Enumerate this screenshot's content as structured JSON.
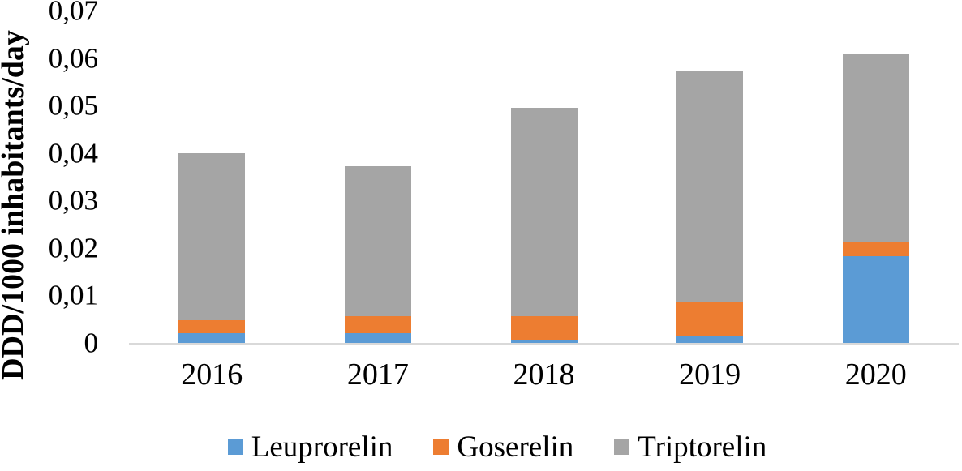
{
  "chart_data": {
    "type": "bar",
    "stacked": true,
    "title": "",
    "xlabel": "",
    "ylabel": "DDD/1000 inhabitants/day",
    "categories": [
      "2016",
      "2017",
      "2018",
      "2019",
      "2020"
    ],
    "series": [
      {
        "name": "Leuprorelin",
        "color": "#5B9BD5",
        "values": [
          0.002,
          0.002,
          0.0005,
          0.0015,
          0.0182
        ]
      },
      {
        "name": "Goserelin",
        "color": "#ED7D31",
        "values": [
          0.0027,
          0.0037,
          0.0051,
          0.007,
          0.0032
        ]
      },
      {
        "name": "Triptorelin",
        "color": "#A5A5A5",
        "values": [
          0.0353,
          0.0316,
          0.044,
          0.0487,
          0.0396
        ]
      }
    ],
    "stack_totals": [
      0.04,
      0.0373,
      0.0496,
      0.0572,
      0.061
    ],
    "ylim": [
      0,
      0.07
    ],
    "yticks": {
      "values": [
        0,
        0.01,
        0.02,
        0.03,
        0.04,
        0.05,
        0.06,
        0.07
      ],
      "labels": [
        "0",
        "0,01",
        "0,02",
        "0,03",
        "0,04",
        "0,05",
        "0,06",
        "0,07"
      ]
    },
    "decimal_separator": ",",
    "grid": false,
    "legend_position": "bottom",
    "legend_labels": [
      "Leuprorelin",
      "Goserelin",
      "Triptorelin"
    ]
  },
  "colors": {
    "axis_line": "#D9D9D9",
    "text": "#000000",
    "background": "#FFFFFF",
    "leuprorelin_blue": "#5B9BD5",
    "goserelin_orange": "#ED7D31",
    "triptorelin_gray": "#A5A5A5"
  }
}
